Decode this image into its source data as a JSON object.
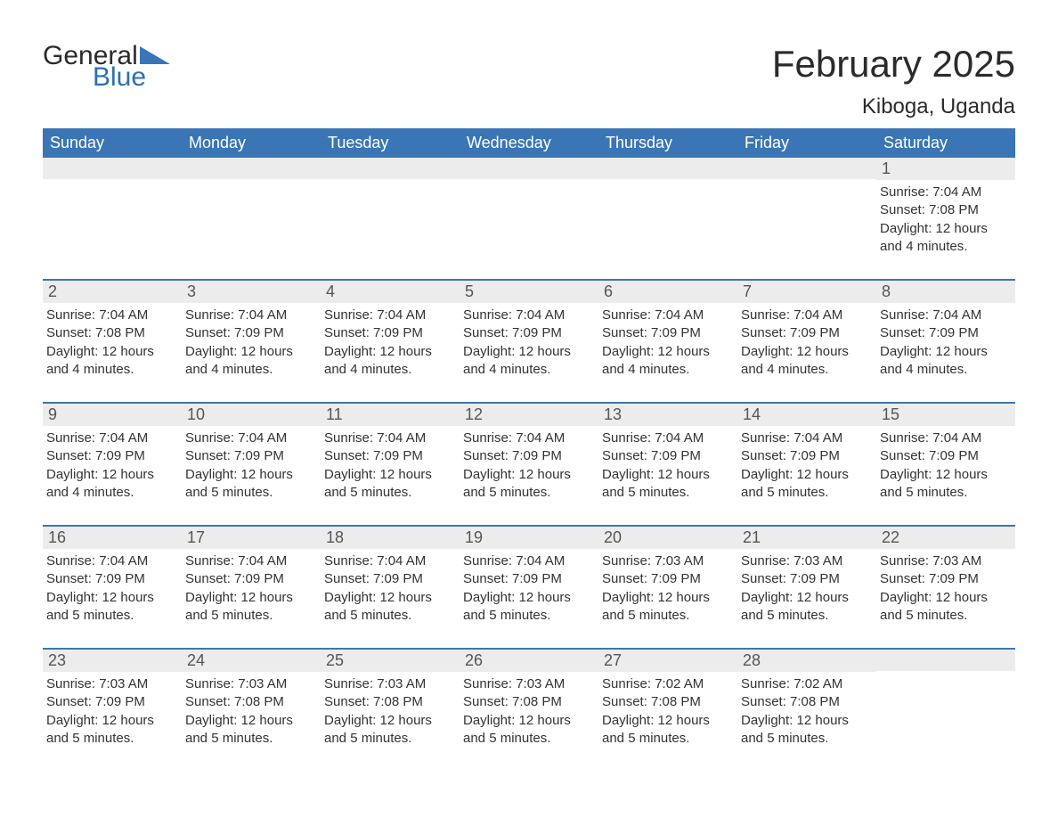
{
  "colors": {
    "header_bg": "#3a76b5",
    "header_text": "#ffffff",
    "daynum_bg": "#ececec",
    "daynum_text": "#555555",
    "week_border": "#3a76b5",
    "body_text": "#333333",
    "logo_general": "#2b2b2b",
    "logo_blue": "#2f6fb0",
    "background": "#ffffff"
  },
  "typography": {
    "title_fontsize": 42,
    "location_fontsize": 24,
    "dow_fontsize": 18,
    "daynum_fontsize": 18,
    "body_fontsize": 15
  },
  "logo": {
    "general": "General",
    "blue": "Blue"
  },
  "title": "February 2025",
  "location": "Kiboga, Uganda",
  "days_of_week": [
    "Sunday",
    "Monday",
    "Tuesday",
    "Wednesday",
    "Thursday",
    "Friday",
    "Saturday"
  ],
  "weeks": [
    [
      null,
      null,
      null,
      null,
      null,
      null,
      {
        "n": "1",
        "sunrise": "Sunrise: 7:04 AM",
        "sunset": "Sunset: 7:08 PM",
        "day1": "Daylight: 12 hours",
        "day2": "and 4 minutes."
      }
    ],
    [
      {
        "n": "2",
        "sunrise": "Sunrise: 7:04 AM",
        "sunset": "Sunset: 7:08 PM",
        "day1": "Daylight: 12 hours",
        "day2": "and 4 minutes."
      },
      {
        "n": "3",
        "sunrise": "Sunrise: 7:04 AM",
        "sunset": "Sunset: 7:09 PM",
        "day1": "Daylight: 12 hours",
        "day2": "and 4 minutes."
      },
      {
        "n": "4",
        "sunrise": "Sunrise: 7:04 AM",
        "sunset": "Sunset: 7:09 PM",
        "day1": "Daylight: 12 hours",
        "day2": "and 4 minutes."
      },
      {
        "n": "5",
        "sunrise": "Sunrise: 7:04 AM",
        "sunset": "Sunset: 7:09 PM",
        "day1": "Daylight: 12 hours",
        "day2": "and 4 minutes."
      },
      {
        "n": "6",
        "sunrise": "Sunrise: 7:04 AM",
        "sunset": "Sunset: 7:09 PM",
        "day1": "Daylight: 12 hours",
        "day2": "and 4 minutes."
      },
      {
        "n": "7",
        "sunrise": "Sunrise: 7:04 AM",
        "sunset": "Sunset: 7:09 PM",
        "day1": "Daylight: 12 hours",
        "day2": "and 4 minutes."
      },
      {
        "n": "8",
        "sunrise": "Sunrise: 7:04 AM",
        "sunset": "Sunset: 7:09 PM",
        "day1": "Daylight: 12 hours",
        "day2": "and 4 minutes."
      }
    ],
    [
      {
        "n": "9",
        "sunrise": "Sunrise: 7:04 AM",
        "sunset": "Sunset: 7:09 PM",
        "day1": "Daylight: 12 hours",
        "day2": "and 4 minutes."
      },
      {
        "n": "10",
        "sunrise": "Sunrise: 7:04 AM",
        "sunset": "Sunset: 7:09 PM",
        "day1": "Daylight: 12 hours",
        "day2": "and 5 minutes."
      },
      {
        "n": "11",
        "sunrise": "Sunrise: 7:04 AM",
        "sunset": "Sunset: 7:09 PM",
        "day1": "Daylight: 12 hours",
        "day2": "and 5 minutes."
      },
      {
        "n": "12",
        "sunrise": "Sunrise: 7:04 AM",
        "sunset": "Sunset: 7:09 PM",
        "day1": "Daylight: 12 hours",
        "day2": "and 5 minutes."
      },
      {
        "n": "13",
        "sunrise": "Sunrise: 7:04 AM",
        "sunset": "Sunset: 7:09 PM",
        "day1": "Daylight: 12 hours",
        "day2": "and 5 minutes."
      },
      {
        "n": "14",
        "sunrise": "Sunrise: 7:04 AM",
        "sunset": "Sunset: 7:09 PM",
        "day1": "Daylight: 12 hours",
        "day2": "and 5 minutes."
      },
      {
        "n": "15",
        "sunrise": "Sunrise: 7:04 AM",
        "sunset": "Sunset: 7:09 PM",
        "day1": "Daylight: 12 hours",
        "day2": "and 5 minutes."
      }
    ],
    [
      {
        "n": "16",
        "sunrise": "Sunrise: 7:04 AM",
        "sunset": "Sunset: 7:09 PM",
        "day1": "Daylight: 12 hours",
        "day2": "and 5 minutes."
      },
      {
        "n": "17",
        "sunrise": "Sunrise: 7:04 AM",
        "sunset": "Sunset: 7:09 PM",
        "day1": "Daylight: 12 hours",
        "day2": "and 5 minutes."
      },
      {
        "n": "18",
        "sunrise": "Sunrise: 7:04 AM",
        "sunset": "Sunset: 7:09 PM",
        "day1": "Daylight: 12 hours",
        "day2": "and 5 minutes."
      },
      {
        "n": "19",
        "sunrise": "Sunrise: 7:04 AM",
        "sunset": "Sunset: 7:09 PM",
        "day1": "Daylight: 12 hours",
        "day2": "and 5 minutes."
      },
      {
        "n": "20",
        "sunrise": "Sunrise: 7:03 AM",
        "sunset": "Sunset: 7:09 PM",
        "day1": "Daylight: 12 hours",
        "day2": "and 5 minutes."
      },
      {
        "n": "21",
        "sunrise": "Sunrise: 7:03 AM",
        "sunset": "Sunset: 7:09 PM",
        "day1": "Daylight: 12 hours",
        "day2": "and 5 minutes."
      },
      {
        "n": "22",
        "sunrise": "Sunrise: 7:03 AM",
        "sunset": "Sunset: 7:09 PM",
        "day1": "Daylight: 12 hours",
        "day2": "and 5 minutes."
      }
    ],
    [
      {
        "n": "23",
        "sunrise": "Sunrise: 7:03 AM",
        "sunset": "Sunset: 7:09 PM",
        "day1": "Daylight: 12 hours",
        "day2": "and 5 minutes."
      },
      {
        "n": "24",
        "sunrise": "Sunrise: 7:03 AM",
        "sunset": "Sunset: 7:08 PM",
        "day1": "Daylight: 12 hours",
        "day2": "and 5 minutes."
      },
      {
        "n": "25",
        "sunrise": "Sunrise: 7:03 AM",
        "sunset": "Sunset: 7:08 PM",
        "day1": "Daylight: 12 hours",
        "day2": "and 5 minutes."
      },
      {
        "n": "26",
        "sunrise": "Sunrise: 7:03 AM",
        "sunset": "Sunset: 7:08 PM",
        "day1": "Daylight: 12 hours",
        "day2": "and 5 minutes."
      },
      {
        "n": "27",
        "sunrise": "Sunrise: 7:02 AM",
        "sunset": "Sunset: 7:08 PM",
        "day1": "Daylight: 12 hours",
        "day2": "and 5 minutes."
      },
      {
        "n": "28",
        "sunrise": "Sunrise: 7:02 AM",
        "sunset": "Sunset: 7:08 PM",
        "day1": "Daylight: 12 hours",
        "day2": "and 5 minutes."
      },
      null
    ]
  ]
}
